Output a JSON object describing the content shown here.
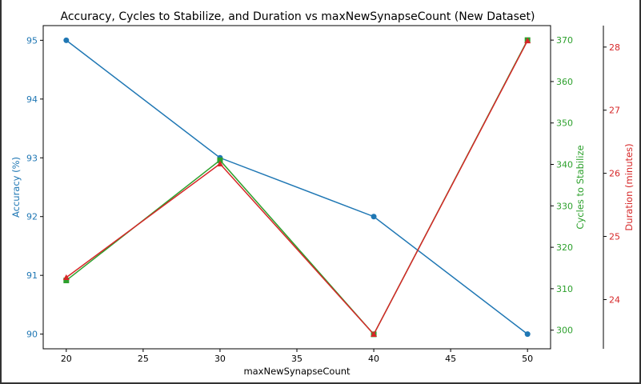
{
  "chart_data": {
    "type": "line",
    "title": "Accuracy, Cycles to Stabilize, and Duration vs maxNewSynapseCount (New Dataset)",
    "xlabel": "maxNewSynapseCount",
    "x": [
      20,
      30,
      40,
      50
    ],
    "xlim": [
      18.5,
      51.5
    ],
    "xticks": [
      "20",
      "25",
      "30",
      "35",
      "40",
      "45",
      "50"
    ],
    "grid": false,
    "series": [
      {
        "name": "Accuracy (%)",
        "axis": "left",
        "color": "#1f77b4",
        "marker": "circle",
        "values": [
          95,
          93,
          92,
          90
        ],
        "ylabel": "Accuracy (%)",
        "ylim": [
          89.75,
          95.25
        ],
        "yticks": [
          "90",
          "91",
          "92",
          "93",
          "94",
          "95"
        ]
      },
      {
        "name": "Cycles to Stabilize",
        "axis": "right",
        "color": "#2ca02c",
        "marker": "square",
        "values": [
          312,
          341,
          299,
          370
        ],
        "ylabel": "Cycles to Stabilize",
        "ylim": [
          295.5,
          373.5
        ],
        "yticks": [
          "300",
          "310",
          "320",
          "330",
          "340",
          "350",
          "360",
          "370"
        ]
      },
      {
        "name": "Duration (minutes)",
        "axis": "right-offset",
        "color": "#d62728",
        "marker": "triangle",
        "values": [
          24.35,
          26.15,
          23.45,
          28.1
        ],
        "ylabel": "Duration (minutes)",
        "ylim": [
          23.22,
          28.34
        ],
        "yticks": [
          "24",
          "25",
          "26",
          "27",
          "28"
        ]
      }
    ]
  }
}
